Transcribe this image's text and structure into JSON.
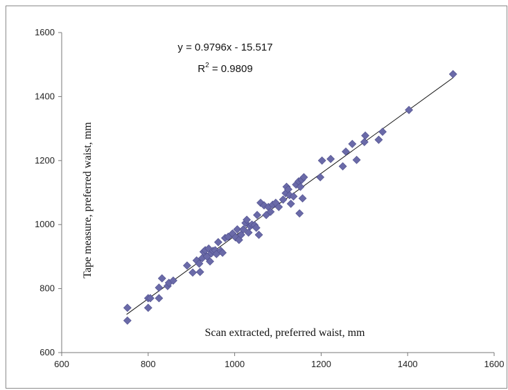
{
  "chart_data": {
    "type": "scatter",
    "title": "",
    "xlabel": "Scan extracted, preferred waist, mm",
    "ylabel": "Tape measure, preferred waist, mm",
    "xlim": [
      600,
      1600
    ],
    "ylim": [
      600,
      1600
    ],
    "x_ticks": [
      "600",
      "800",
      "1000",
      "1200",
      "1400",
      "1600"
    ],
    "y_ticks": [
      "600",
      "800",
      "1000",
      "1200",
      "1400",
      "1600"
    ],
    "grid": false,
    "legend": "none",
    "marker_color": "#6a6aa8",
    "trendline": {
      "slope": 0.9796,
      "intercept": -15.517,
      "x_range": [
        750,
        1505
      ],
      "equation": "y = 0.9796x - 15.517",
      "r2_label": "R",
      "r2_sup": "2",
      "r2_value": " = 0.9809"
    },
    "points": [
      [
        752,
        740
      ],
      [
        752,
        700
      ],
      [
        800,
        740
      ],
      [
        800,
        770
      ],
      [
        805,
        770
      ],
      [
        825,
        770
      ],
      [
        825,
        803
      ],
      [
        832,
        832
      ],
      [
        845,
        808
      ],
      [
        848,
        818
      ],
      [
        858,
        825
      ],
      [
        890,
        872
      ],
      [
        903,
        850
      ],
      [
        912,
        888
      ],
      [
        918,
        878
      ],
      [
        920,
        852
      ],
      [
        925,
        895
      ],
      [
        928,
        915
      ],
      [
        932,
        920
      ],
      [
        936,
        900
      ],
      [
        940,
        925
      ],
      [
        943,
        885
      ],
      [
        946,
        910
      ],
      [
        950,
        918
      ],
      [
        955,
        920
      ],
      [
        958,
        908
      ],
      [
        962,
        945
      ],
      [
        968,
        918
      ],
      [
        972,
        912
      ],
      [
        978,
        958
      ],
      [
        985,
        962
      ],
      [
        995,
        972
      ],
      [
        1002,
        960
      ],
      [
        1006,
        985
      ],
      [
        1010,
        952
      ],
      [
        1015,
        968
      ],
      [
        1020,
        985
      ],
      [
        1025,
        1005
      ],
      [
        1028,
        1015
      ],
      [
        1032,
        975
      ],
      [
        1036,
        995
      ],
      [
        1040,
        1000
      ],
      [
        1046,
        998
      ],
      [
        1050,
        990
      ],
      [
        1052,
        1030
      ],
      [
        1056,
        968
      ],
      [
        1060,
        1068
      ],
      [
        1068,
        1060
      ],
      [
        1073,
        1030
      ],
      [
        1078,
        1055
      ],
      [
        1083,
        1040
      ],
      [
        1088,
        1062
      ],
      [
        1095,
        1068
      ],
      [
        1102,
        1055
      ],
      [
        1112,
        1078
      ],
      [
        1118,
        1098
      ],
      [
        1120,
        1118
      ],
      [
        1124,
        1110
      ],
      [
        1127,
        1092
      ],
      [
        1130,
        1065
      ],
      [
        1136,
        1088
      ],
      [
        1142,
        1125
      ],
      [
        1148,
        1135
      ],
      [
        1150,
        1035
      ],
      [
        1152,
        1118
      ],
      [
        1155,
        1140
      ],
      [
        1157,
        1082
      ],
      [
        1160,
        1148
      ],
      [
        1198,
        1148
      ],
      [
        1202,
        1200
      ],
      [
        1222,
        1205
      ],
      [
        1250,
        1182
      ],
      [
        1257,
        1228
      ],
      [
        1272,
        1252
      ],
      [
        1282,
        1202
      ],
      [
        1300,
        1258
      ],
      [
        1302,
        1278
      ],
      [
        1333,
        1265
      ],
      [
        1342,
        1290
      ],
      [
        1403,
        1358
      ],
      [
        1505,
        1470
      ]
    ]
  }
}
